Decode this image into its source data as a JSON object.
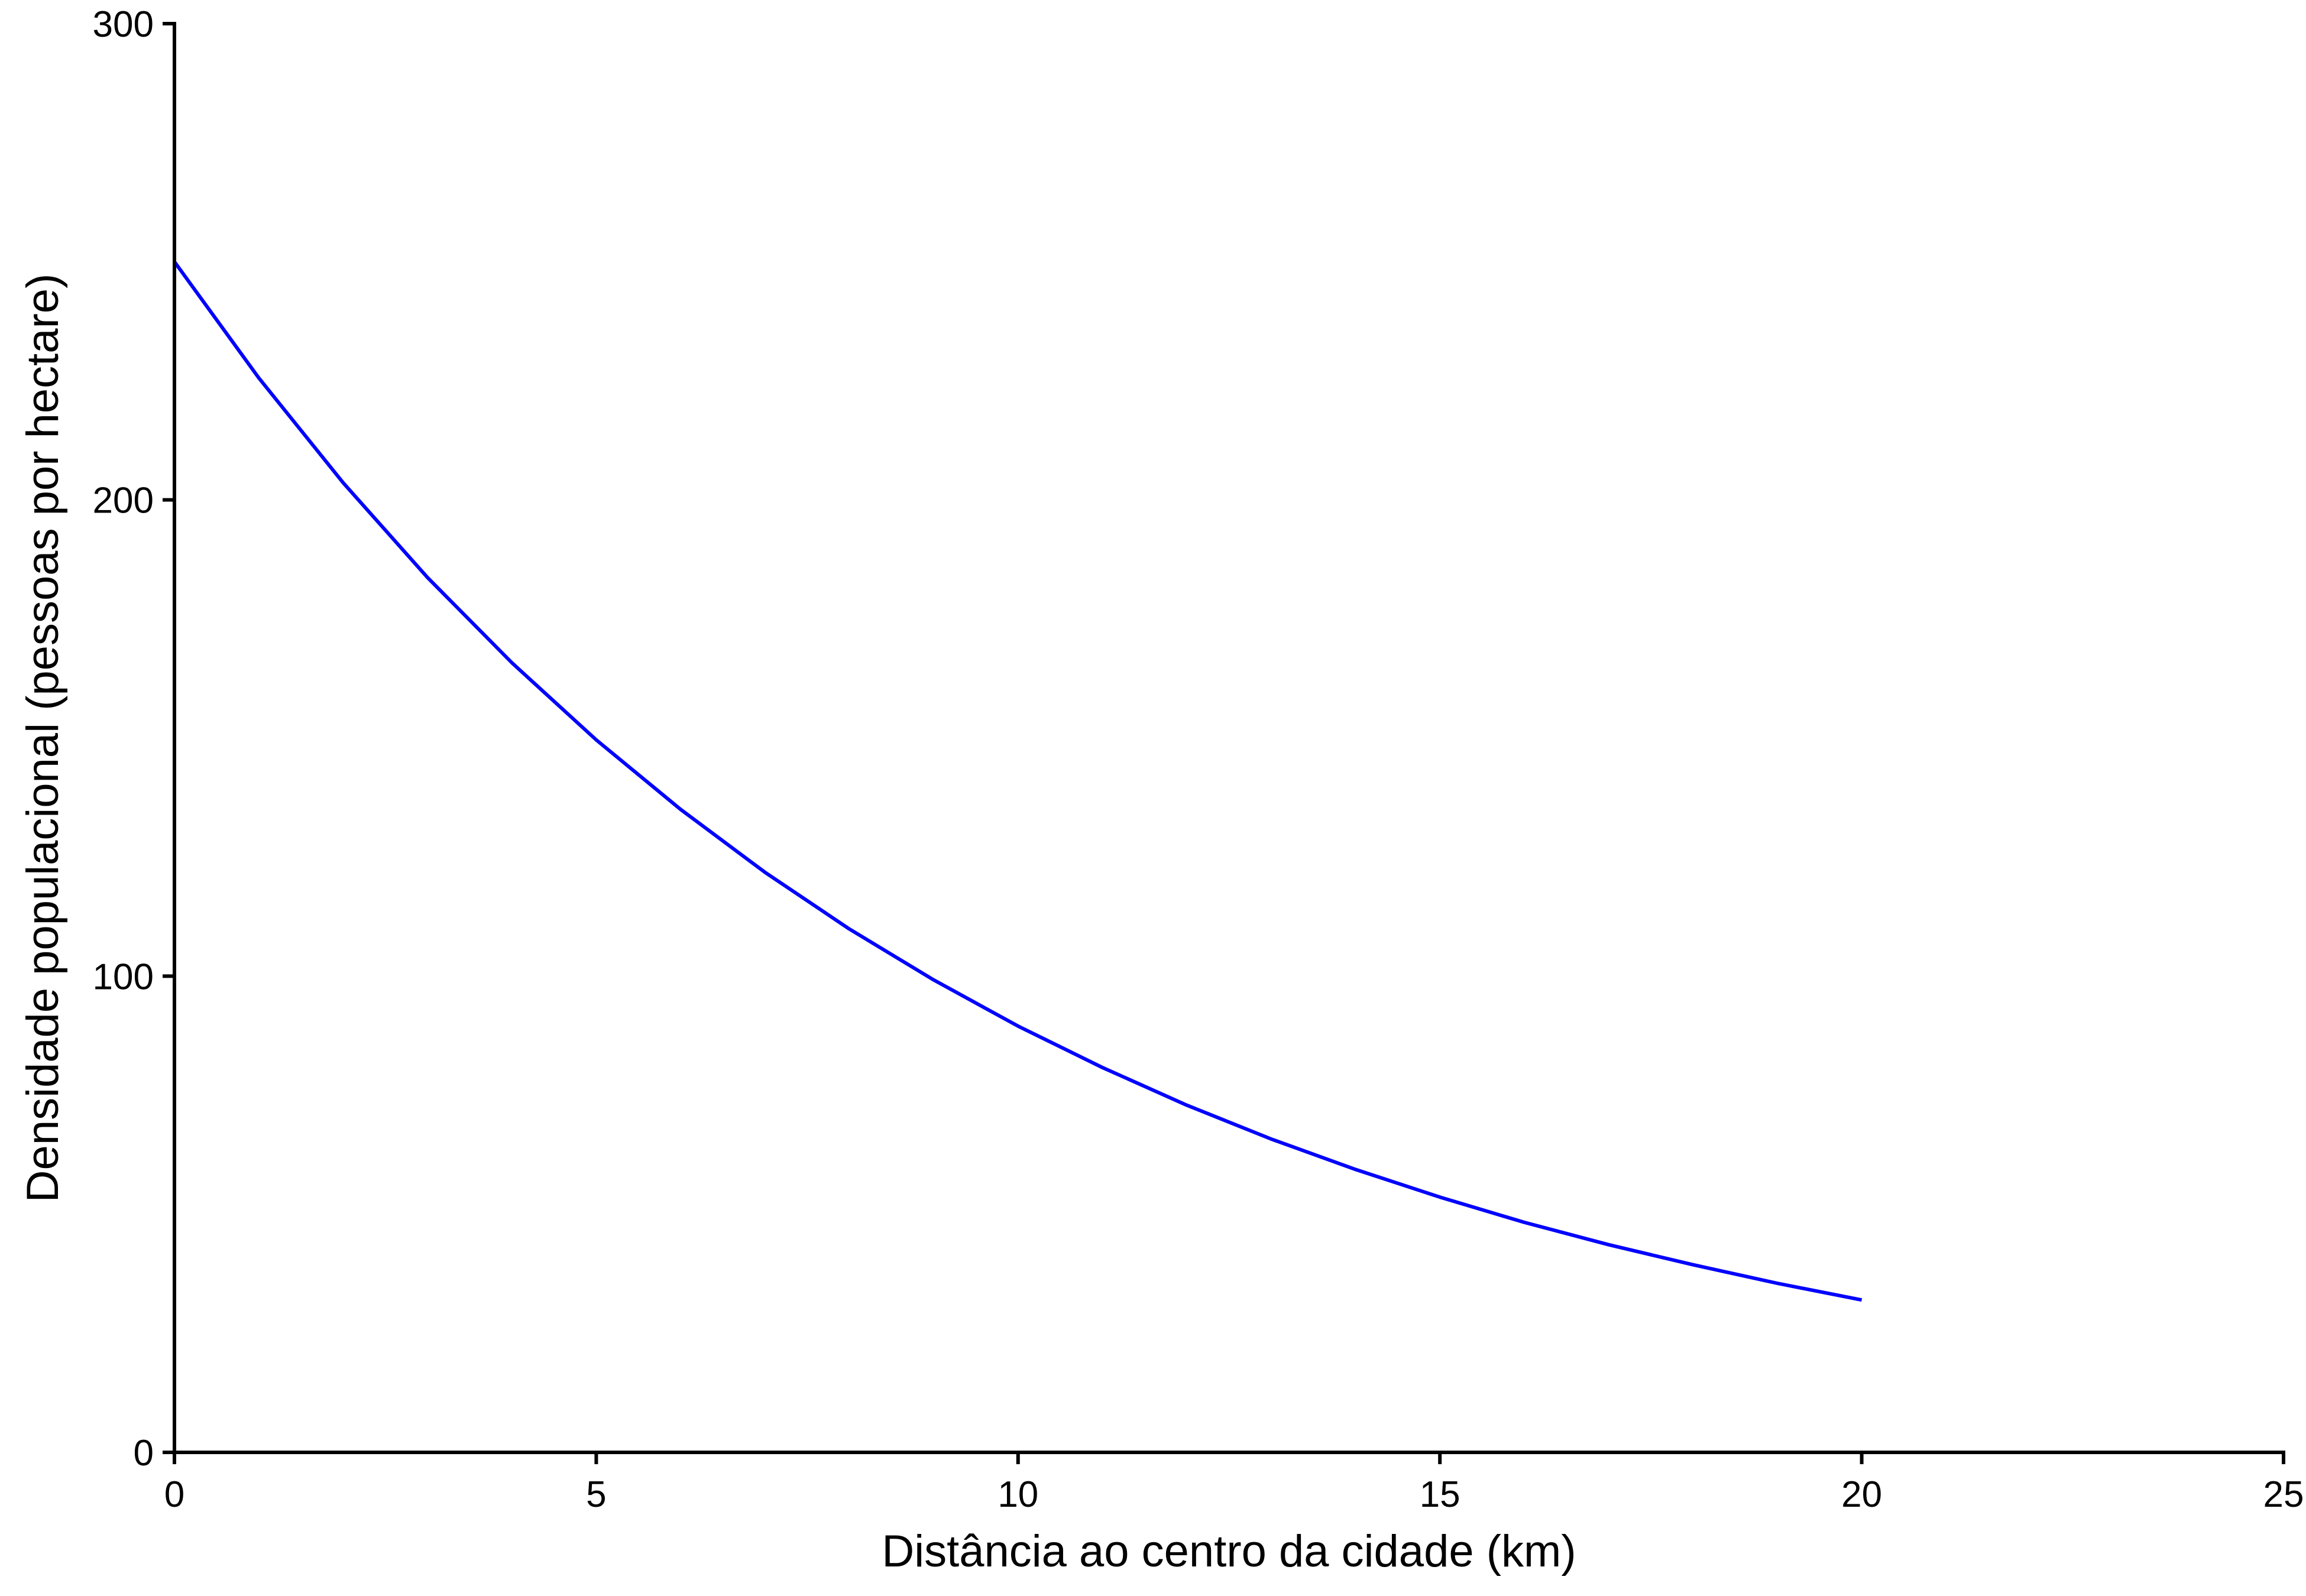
{
  "chart_data": {
    "type": "line",
    "title": "",
    "xlabel": "Distância ao centro da cidade (km)",
    "ylabel": "Densidade populacional (pessoas por hectare)",
    "xlim": [
      0,
      25
    ],
    "ylim": [
      0,
      300
    ],
    "xticks": [
      0,
      5,
      10,
      15,
      20,
      25
    ],
    "xtick_labels": [
      "0",
      "5",
      "10",
      "15",
      "20",
      "25"
    ],
    "yticks": [
      0,
      100,
      200,
      300
    ],
    "ytick_labels": [
      "0",
      "100",
      "200",
      "300"
    ],
    "grid": false,
    "legend": "none",
    "series": [
      {
        "color": "#0000ff",
        "x": [
          0,
          1,
          2,
          3,
          4,
          5,
          6,
          7,
          8,
          9,
          10,
          11,
          12,
          13,
          14,
          15,
          16,
          17,
          18,
          19,
          20
        ],
        "y": [
          250,
          225.6,
          203.6,
          183.7,
          165.8,
          149.6,
          135.0,
          121.8,
          109.9,
          99.2,
          89.5,
          80.8,
          72.9,
          65.8,
          59.4,
          53.6,
          48.3,
          43.6,
          39.4,
          35.5,
          32.0
        ]
      }
    ]
  }
}
